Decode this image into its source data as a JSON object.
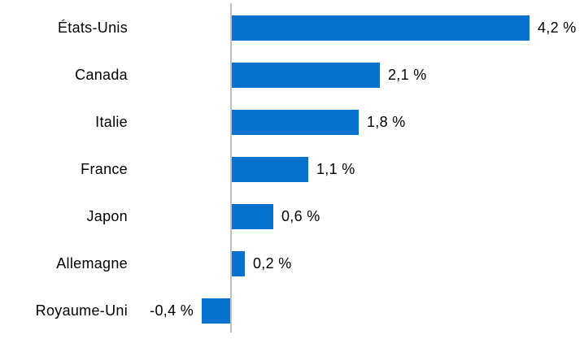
{
  "chart_data": {
    "type": "bar",
    "orientation": "horizontal",
    "title": "",
    "xlabel": "",
    "ylabel": "",
    "categories": [
      "États-Unis",
      "Canada",
      "Italie",
      "France",
      "Japon",
      "Allemagne",
      "Royaume-Uni"
    ],
    "values": [
      4.2,
      2.1,
      1.8,
      1.1,
      0.6,
      0.2,
      -0.4
    ],
    "value_labels": [
      "4,2 %",
      "2,1 %",
      "1,8 %",
      "1,1 %",
      "0,6 %",
      "0,2 %",
      "-0,4 %"
    ],
    "unit": "%",
    "xlim": [
      -0.6,
      4.95
    ],
    "grid": false,
    "legend": false,
    "bar_color": "#0672CE",
    "axis_line_color": "#BFBFBF",
    "label_color": "#000000"
  }
}
